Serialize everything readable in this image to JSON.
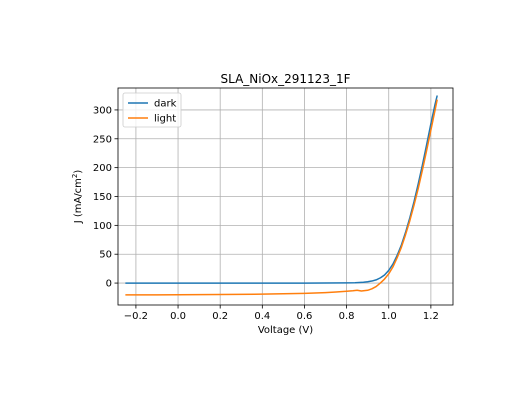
{
  "chart_data": {
    "type": "line",
    "title": "SLA_NiOx_291123_1F",
    "xlabel": "Voltage (V)",
    "ylabel_main": "J (mA/cm",
    "ylabel_sup": "2",
    "ylabel_end": ")",
    "xlim": [
      -0.285,
      1.305
    ],
    "ylim": [
      -38,
      338
    ],
    "xticks": [
      -0.2,
      0.0,
      0.2,
      0.4,
      0.6,
      0.8,
      1.0,
      1.2
    ],
    "xtick_labels": [
      "−0.2",
      "0.0",
      "0.2",
      "0.4",
      "0.6",
      "0.8",
      "1.0",
      "1.2"
    ],
    "yticks": [
      0,
      50,
      100,
      150,
      200,
      250,
      300
    ],
    "ytick_labels": [
      "0",
      "50",
      "100",
      "150",
      "200",
      "250",
      "300"
    ],
    "grid": true,
    "legend_position": "top-left",
    "series": [
      {
        "name": "dark",
        "color": "#1f77b4",
        "x": [
          -0.25,
          -0.1,
          0.0,
          0.2,
          0.4,
          0.6,
          0.7,
          0.8,
          0.84,
          0.86,
          0.88,
          0.9,
          0.92,
          0.94,
          0.96,
          0.98,
          1.0,
          1.02,
          1.04,
          1.06,
          1.08,
          1.1,
          1.12,
          1.14,
          1.16,
          1.18,
          1.2,
          1.22,
          1.23
        ],
        "y": [
          0,
          0,
          0,
          0,
          0,
          0,
          0.1,
          0.3,
          0.6,
          1,
          1.5,
          2.3,
          3.5,
          5.5,
          9,
          14,
          22,
          33,
          48,
          66,
          88,
          113,
          141,
          172,
          205,
          240,
          276,
          310,
          325
        ]
      },
      {
        "name": "light",
        "color": "#ff7f0e",
        "x": [
          -0.25,
          -0.1,
          0.0,
          0.2,
          0.4,
          0.5,
          0.6,
          0.7,
          0.75,
          0.8,
          0.83,
          0.85,
          0.87,
          0.9,
          0.92,
          0.94,
          0.96,
          0.98,
          1.0,
          1.02,
          1.04,
          1.06,
          1.08,
          1.1,
          1.12,
          1.14,
          1.16,
          1.18,
          1.2,
          1.22,
          1.23
        ],
        "y": [
          -20.5,
          -20.4,
          -20.2,
          -19.8,
          -19.2,
          -18.5,
          -17.8,
          -16.5,
          -15.5,
          -14.2,
          -13.3,
          -12.5,
          -13.8,
          -12.5,
          -10,
          -6,
          0,
          7,
          16,
          28,
          44,
          62,
          84,
          108,
          135,
          164,
          196,
          230,
          265,
          300,
          318
        ]
      }
    ]
  }
}
